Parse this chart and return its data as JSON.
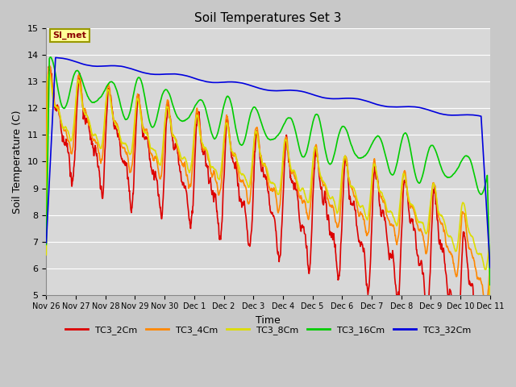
{
  "title": "Soil Temperatures Set 3",
  "xlabel": "Time",
  "ylabel": "Soil Temperature (C)",
  "ylim": [
    5.0,
    15.0
  ],
  "yticks": [
    5.0,
    6.0,
    7.0,
    8.0,
    9.0,
    10.0,
    11.0,
    12.0,
    13.0,
    14.0,
    15.0
  ],
  "fig_bg_color": "#c8c8c8",
  "plot_bg_color": "#d8d8d8",
  "grid_color": "#ffffff",
  "annotation_text": "SI_met",
  "annotation_color": "#8b0000",
  "annotation_bg": "#ffff99",
  "annotation_border": "#999900",
  "series": {
    "TC3_2Cm": {
      "color": "#dd0000",
      "lw": 1.2
    },
    "TC3_4Cm": {
      "color": "#ff8800",
      "lw": 1.2
    },
    "TC3_8Cm": {
      "color": "#dddd00",
      "lw": 1.2
    },
    "TC3_16Cm": {
      "color": "#00cc00",
      "lw": 1.2
    },
    "TC3_32Cm": {
      "color": "#0000dd",
      "lw": 1.2
    }
  },
  "legend_colors": {
    "TC3_2Cm": "#dd0000",
    "TC3_4Cm": "#ff8800",
    "TC3_8Cm": "#dddd00",
    "TC3_16Cm": "#00cc00",
    "TC3_32Cm": "#0000dd"
  },
  "xtick_labels": [
    "Nov 26",
    "Nov 27",
    "Nov 28",
    "Nov 29",
    "Nov 30",
    "Dec 1",
    "Dec 2",
    "Dec 3",
    "Dec 4",
    "Dec 5",
    "Dec 6",
    "Dec 7",
    "Dec 8",
    "Dec 9",
    "Dec 10",
    "Dec 11"
  ],
  "n_hours": 360,
  "hours_per_day": 24
}
